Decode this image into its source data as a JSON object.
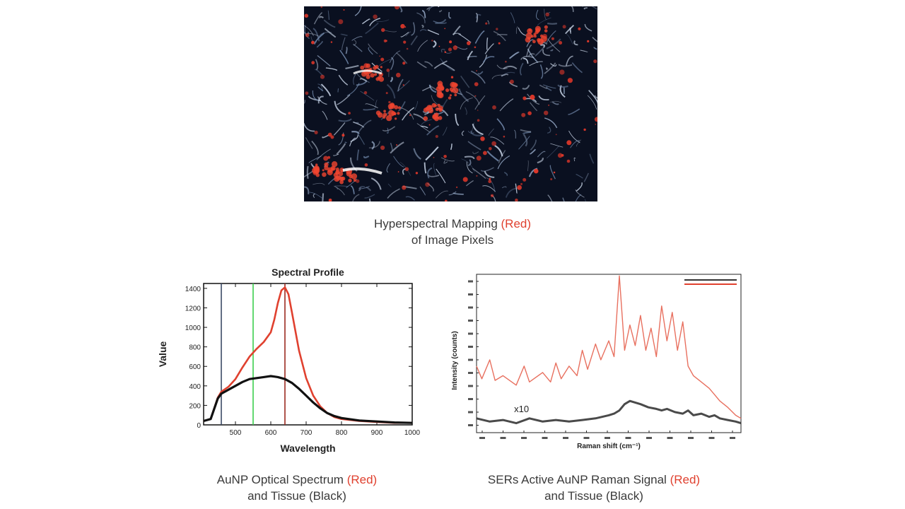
{
  "figure": {
    "micrograph_label": "hyperspectral-tissue-image",
    "captions": {
      "top": {
        "line1_a": "Hyperspectral Mapping ",
        "line1_red": "(Red)",
        "line2": "of Image Pixels"
      },
      "left": {
        "line1_a": "AuNP Optical Spectrum ",
        "line1_red": "(Red)",
        "line2": "and Tissue (Black)"
      },
      "right": {
        "line1_a": "SERs Active AuNP Raman Signal ",
        "line1_red": "(Red)",
        "line2": "and Tissue (Black)"
      }
    },
    "colors": {
      "accent_red": "#e0412f",
      "tissue_black": "#111111",
      "marker_blue": "#3b4a66",
      "marker_green": "#3ccf4e",
      "marker_red": "#9b2a1f"
    }
  },
  "chart_data": [
    {
      "type": "line",
      "title": "Spectral Profile",
      "xlabel": "Wavelength",
      "ylabel": "Value",
      "xlim": [
        410,
        1000
      ],
      "ylim": [
        0,
        1450
      ],
      "xticks": [
        "500",
        "600",
        "700",
        "800",
        "900",
        "1000"
      ],
      "yticks": [
        "0",
        "200",
        "400",
        "600",
        "800",
        "1000",
        "1200",
        "1400"
      ],
      "vertical_markers": [
        460,
        550,
        640
      ],
      "series": [
        {
          "color": "red",
          "x": [
            410,
            430,
            450,
            460,
            480,
            500,
            520,
            540,
            560,
            580,
            600,
            610,
            620,
            630,
            640,
            650,
            660,
            680,
            700,
            720,
            740,
            760,
            780,
            800,
            850,
            900,
            950,
            1000
          ],
          "y": [
            40,
            60,
            280,
            340,
            390,
            470,
            590,
            700,
            780,
            850,
            950,
            1080,
            1250,
            1380,
            1410,
            1340,
            1150,
            760,
            480,
            300,
            190,
            120,
            80,
            60,
            40,
            30,
            20,
            20
          ]
        },
        {
          "color": "black",
          "x": [
            410,
            430,
            450,
            460,
            480,
            500,
            520,
            540,
            560,
            580,
            600,
            610,
            620,
            640,
            660,
            680,
            700,
            720,
            740,
            760,
            780,
            800,
            850,
            900,
            950,
            1000
          ],
          "y": [
            40,
            60,
            270,
            320,
            360,
            400,
            440,
            470,
            480,
            490,
            500,
            495,
            490,
            470,
            430,
            370,
            300,
            230,
            170,
            120,
            90,
            70,
            45,
            35,
            25,
            20
          ]
        }
      ]
    },
    {
      "type": "line",
      "xlabel": "Raman shift (cm⁻¹)",
      "ylabel": "Intensity (counts)",
      "annotation": "x10",
      "xlim": [
        0,
        100
      ],
      "ylim": [
        0,
        100
      ],
      "series": [
        {
          "color": "red",
          "x": [
            0,
            2,
            5,
            7,
            10,
            15,
            18,
            20,
            25,
            28,
            30,
            32,
            35,
            38,
            40,
            42,
            45,
            47,
            50,
            52,
            54,
            56,
            58,
            60,
            62,
            64,
            66,
            68,
            70,
            72,
            74,
            76,
            78,
            80,
            82,
            85,
            88,
            90,
            92,
            95,
            98,
            100
          ],
          "y": [
            42,
            34,
            46,
            33,
            36,
            30,
            42,
            32,
            38,
            32,
            44,
            34,
            42,
            36,
            52,
            40,
            56,
            46,
            58,
            48,
            99,
            52,
            68,
            55,
            74,
            52,
            66,
            48,
            80,
            58,
            76,
            52,
            70,
            42,
            36,
            32,
            28,
            24,
            20,
            16,
            11,
            9
          ]
        },
        {
          "color": "black",
          "x": [
            0,
            5,
            10,
            15,
            20,
            25,
            30,
            35,
            40,
            45,
            50,
            52,
            54,
            56,
            58,
            60,
            62,
            65,
            68,
            70,
            72,
            75,
            78,
            80,
            82,
            85,
            88,
            90,
            92,
            95,
            98,
            100
          ],
          "y": [
            9,
            7,
            8,
            6,
            9,
            7,
            8,
            7,
            8,
            9,
            11,
            12,
            14,
            18,
            20,
            19,
            18,
            16,
            15,
            14,
            15,
            13,
            12,
            14,
            11,
            12,
            10,
            11,
            9,
            8,
            7,
            6
          ]
        }
      ]
    }
  ]
}
